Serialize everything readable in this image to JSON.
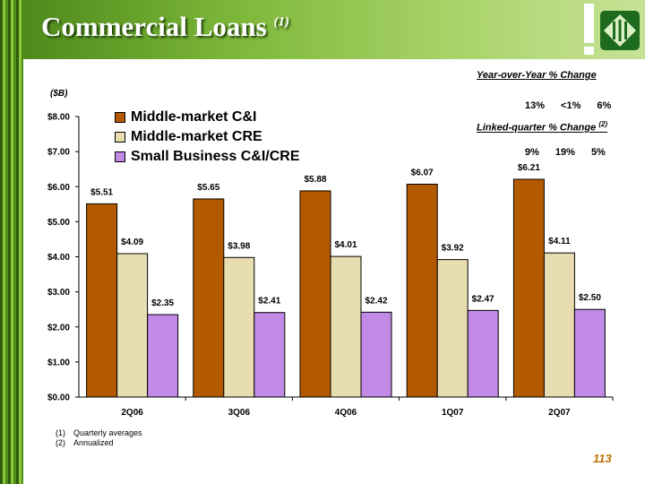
{
  "slide": {
    "title": "Commercial Loans",
    "title_footnote": "(1)",
    "page_number": "113",
    "footnotes": [
      {
        "num": "(1)",
        "text": "Quarterly averages"
      },
      {
        "num": "(2)",
        "text": "Annualized"
      }
    ]
  },
  "stats": {
    "yoy_heading": "Year-over-Year % Change",
    "yoy_values": [
      "13%",
      "<1%",
      "6%"
    ],
    "lq_heading": "Linked-quarter % Change",
    "lq_footnote": "(2)",
    "lq_values": [
      "9%",
      "19%",
      "5%"
    ]
  },
  "colors": {
    "header_green": "#7eb83a",
    "c_and_i": "#b35a00",
    "cre": "#e8ddb0",
    "small_business": "#c08ae6",
    "page_number": "#c07000"
  },
  "chart_data": {
    "type": "bar",
    "unit_label": "($B)",
    "categories": [
      "2Q06",
      "3Q06",
      "4Q06",
      "1Q07",
      "2Q07"
    ],
    "series": [
      {
        "name": "Middle-market C&I",
        "values": [
          5.51,
          5.65,
          5.88,
          6.07,
          6.21
        ],
        "labels": [
          "$5.51",
          "$5.65",
          "$5.88",
          "$6.07",
          "$6.21"
        ]
      },
      {
        "name": "Middle-market CRE",
        "values": [
          4.09,
          3.98,
          4.01,
          3.92,
          4.11
        ],
        "labels": [
          "$4.09",
          "$3.98",
          "$4.01",
          "$3.92",
          "$4.11"
        ]
      },
      {
        "name": "Small Business C&I/CRE",
        "values": [
          2.35,
          2.41,
          2.42,
          2.47,
          2.5
        ],
        "labels": [
          "$2.35",
          "$2.41",
          "$2.42",
          "$2.47",
          "$2.50"
        ]
      }
    ],
    "ylim": [
      0,
      8
    ],
    "yticks": [
      "$0.00",
      "$1.00",
      "$2.00",
      "$3.00",
      "$4.00",
      "$5.00",
      "$6.00",
      "$7.00",
      "$8.00"
    ],
    "grid": false,
    "legend_position": "top-left"
  }
}
